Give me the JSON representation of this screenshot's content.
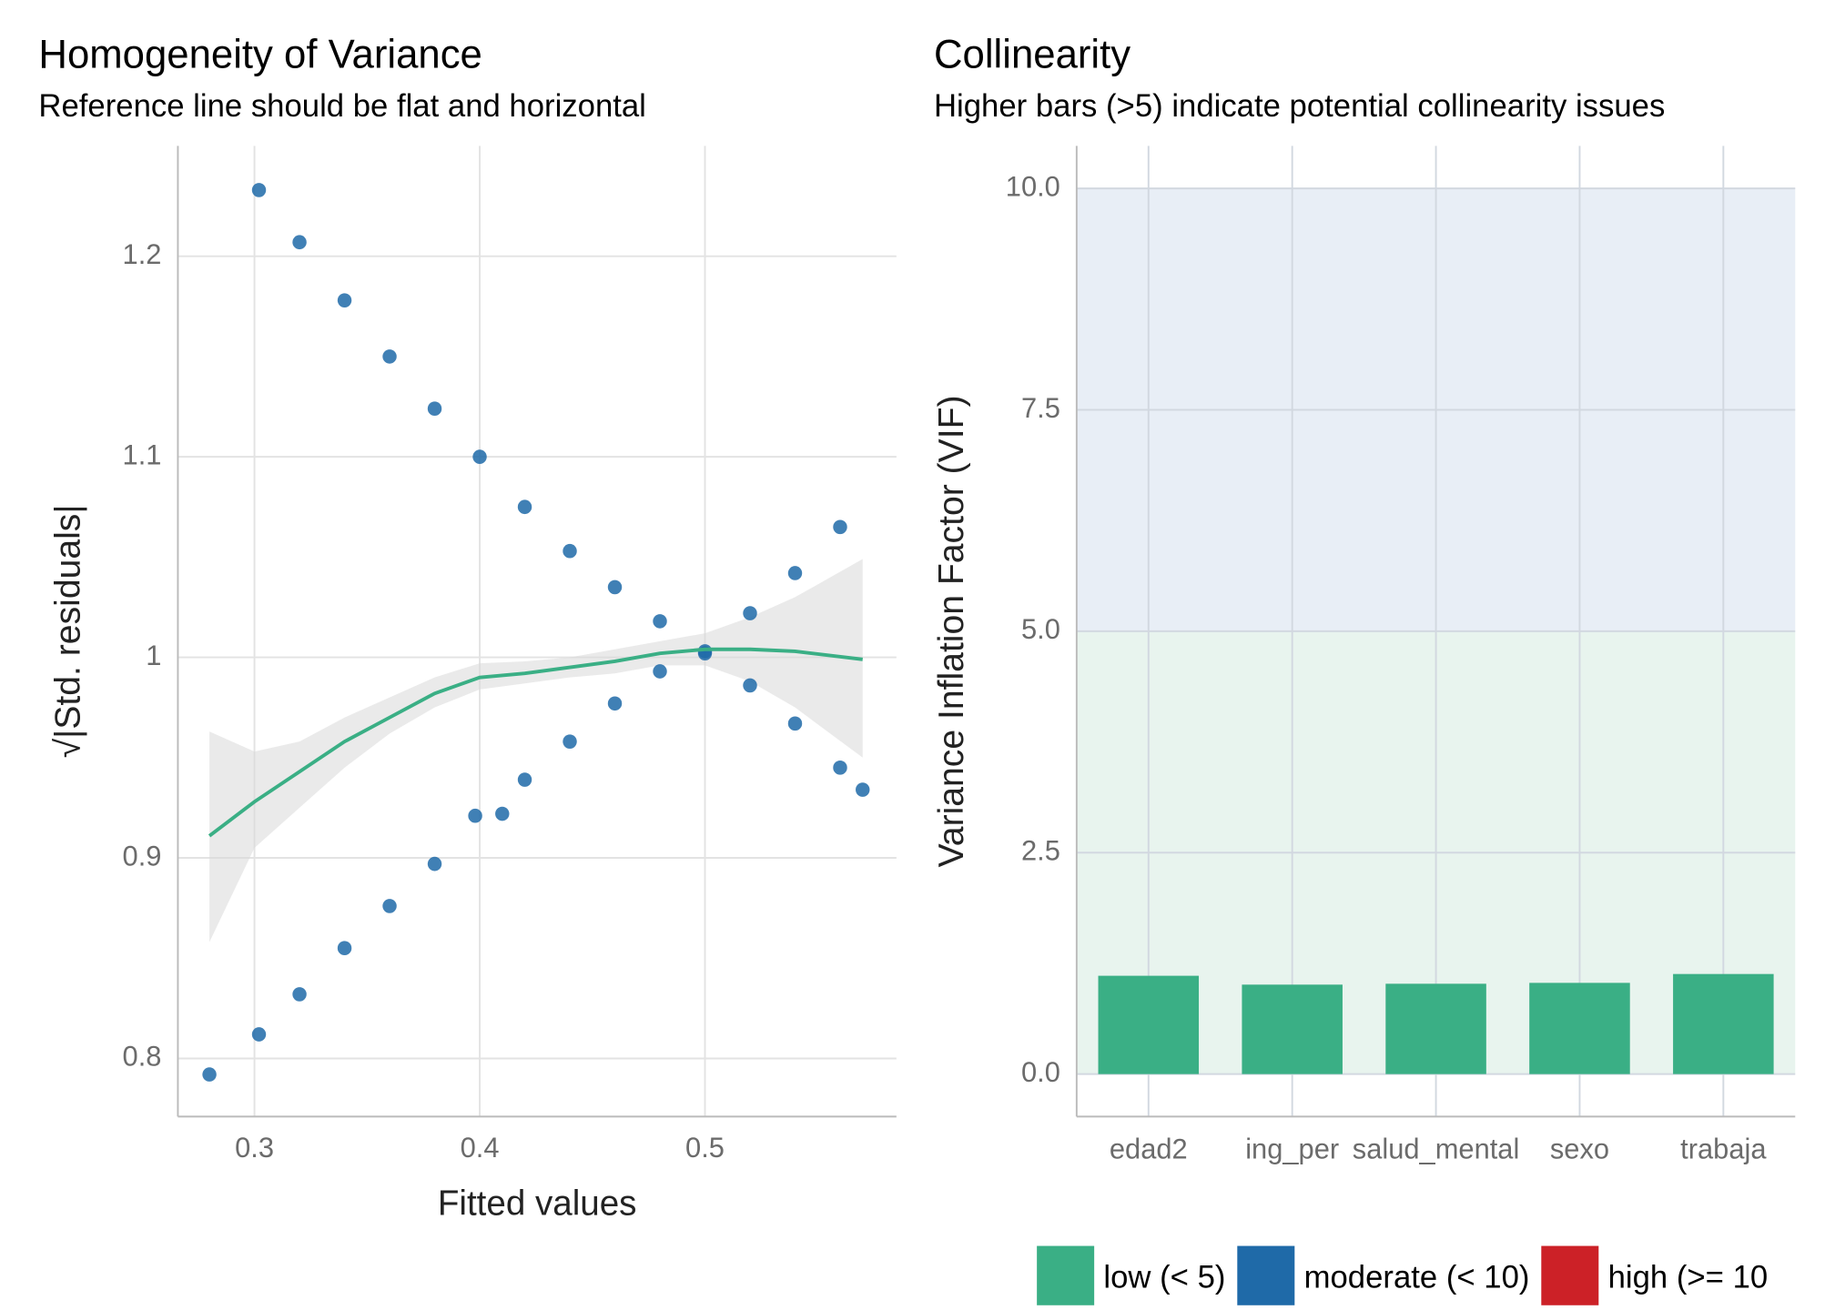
{
  "chart_data": [
    {
      "type": "scatter",
      "title": "Homogeneity of Variance",
      "subtitle": "Reference line should be flat and horizontal",
      "xlabel": "Fitted values",
      "ylabel": "√|Std. residuals|",
      "xlim": [
        0.266,
        0.585
      ],
      "ylim": [
        0.771,
        1.255
      ],
      "xticks": [
        0.3,
        0.4,
        0.5
      ],
      "yticks": [
        0.8,
        0.9,
        1.0,
        1.1,
        1.2
      ],
      "grid": true,
      "points": {
        "color": "#1f6aa8",
        "x": [
          0.28,
          0.302,
          0.32,
          0.34,
          0.36,
          0.38,
          0.4,
          0.42,
          0.44,
          0.46,
          0.48,
          0.5,
          0.52,
          0.54,
          0.56,
          0.57,
          0.302,
          0.32,
          0.34,
          0.36,
          0.38,
          0.398,
          0.41,
          0.42,
          0.44,
          0.46,
          0.48,
          0.5,
          0.52,
          0.54,
          0.56
        ],
        "values": [
          0.792,
          1.233,
          1.207,
          1.178,
          1.15,
          1.124,
          1.1,
          1.075,
          1.053,
          1.035,
          1.018,
          1.002,
          0.986,
          0.967,
          0.945,
          0.934,
          0.812,
          0.832,
          0.855,
          0.876,
          0.897,
          0.921,
          0.922,
          0.939,
          0.958,
          0.977,
          0.993,
          1.003,
          1.022,
          1.042,
          1.065
        ]
      },
      "smooth": {
        "color": "#3aaf85",
        "band_color": "#d9d9d9",
        "x": [
          0.28,
          0.3,
          0.32,
          0.34,
          0.36,
          0.38,
          0.4,
          0.42,
          0.44,
          0.46,
          0.48,
          0.5,
          0.52,
          0.54,
          0.57
        ],
        "values": [
          0.911,
          0.928,
          0.943,
          0.958,
          0.97,
          0.982,
          0.99,
          0.992,
          0.995,
          0.998,
          1.002,
          1.004,
          1.004,
          1.003,
          0.999
        ],
        "lower": [
          0.858,
          0.905,
          0.925,
          0.945,
          0.962,
          0.975,
          0.984,
          0.987,
          0.99,
          0.992,
          0.996,
          0.996,
          0.988,
          0.975,
          0.95
        ],
        "upper": [
          0.963,
          0.953,
          0.958,
          0.97,
          0.98,
          0.99,
          0.997,
          0.998,
          1.0,
          1.004,
          1.008,
          1.012,
          1.02,
          1.03,
          1.049
        ]
      }
    },
    {
      "type": "bar",
      "title": "Collinearity",
      "subtitle": "Higher bars (>5) indicate potential collinearity issues",
      "ylabel": "Variance Inflation Factor (VIF)",
      "categories": [
        "edad2",
        "ing_per",
        "salud_mental",
        "sexo",
        "trabaja"
      ],
      "values": [
        1.11,
        1.01,
        1.02,
        1.03,
        1.13
      ],
      "color": "#3aaf85",
      "ylim": [
        -0.48,
        10.48
      ],
      "yticks": [
        {
          "value": 0,
          "label": "0.0"
        },
        2.5,
        {
          "value": 5,
          "label": "5.0"
        },
        7.5,
        {
          "value": 10,
          "label": "10.0"
        }
      ],
      "grid": true,
      "regions": [
        {
          "from": 0,
          "to": 5,
          "color": "#e8f4ee"
        },
        {
          "from": 5,
          "to": 10,
          "color": "#e8eef6"
        }
      ],
      "legend_position": "bottom",
      "series": [
        {
          "name": "low (< 5)",
          "color": "#3aaf85"
        },
        {
          "name": "moderate (< 10)",
          "color": "#1f6aa8"
        },
        {
          "name": "high (>= 10",
          "color": "#cc2127"
        }
      ]
    }
  ]
}
